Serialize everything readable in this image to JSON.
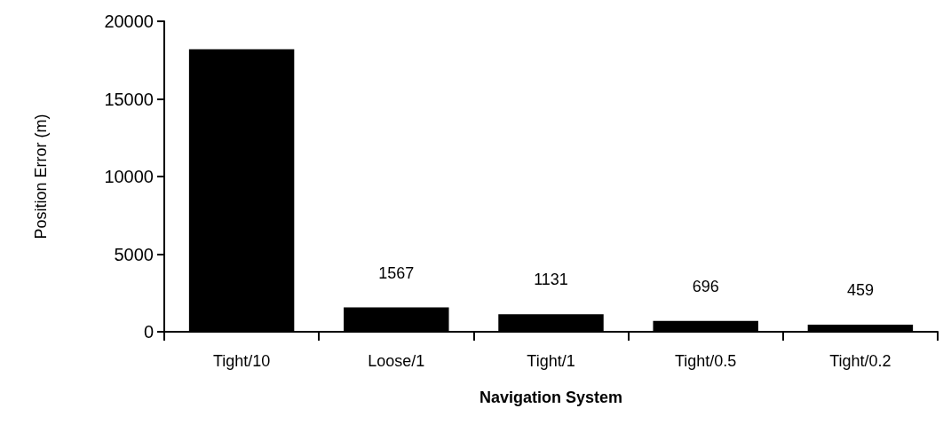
{
  "chart_data": {
    "type": "bar",
    "xlabel": "Navigation System",
    "ylabel": "Position Error (m)",
    "categories": [
      "Tight/10",
      "Loose/1",
      "Tight/1",
      "Tight/0.5",
      "Tight/0.2"
    ],
    "values": [
      18200,
      1567,
      1131,
      696,
      459
    ],
    "value_labels": [
      null,
      "1567",
      "1131",
      "696",
      "459"
    ],
    "color": "#000000",
    "ylim": [
      0,
      20000
    ],
    "yticks": [
      0,
      5000,
      10000,
      15000,
      20000
    ],
    "grid": false
  }
}
